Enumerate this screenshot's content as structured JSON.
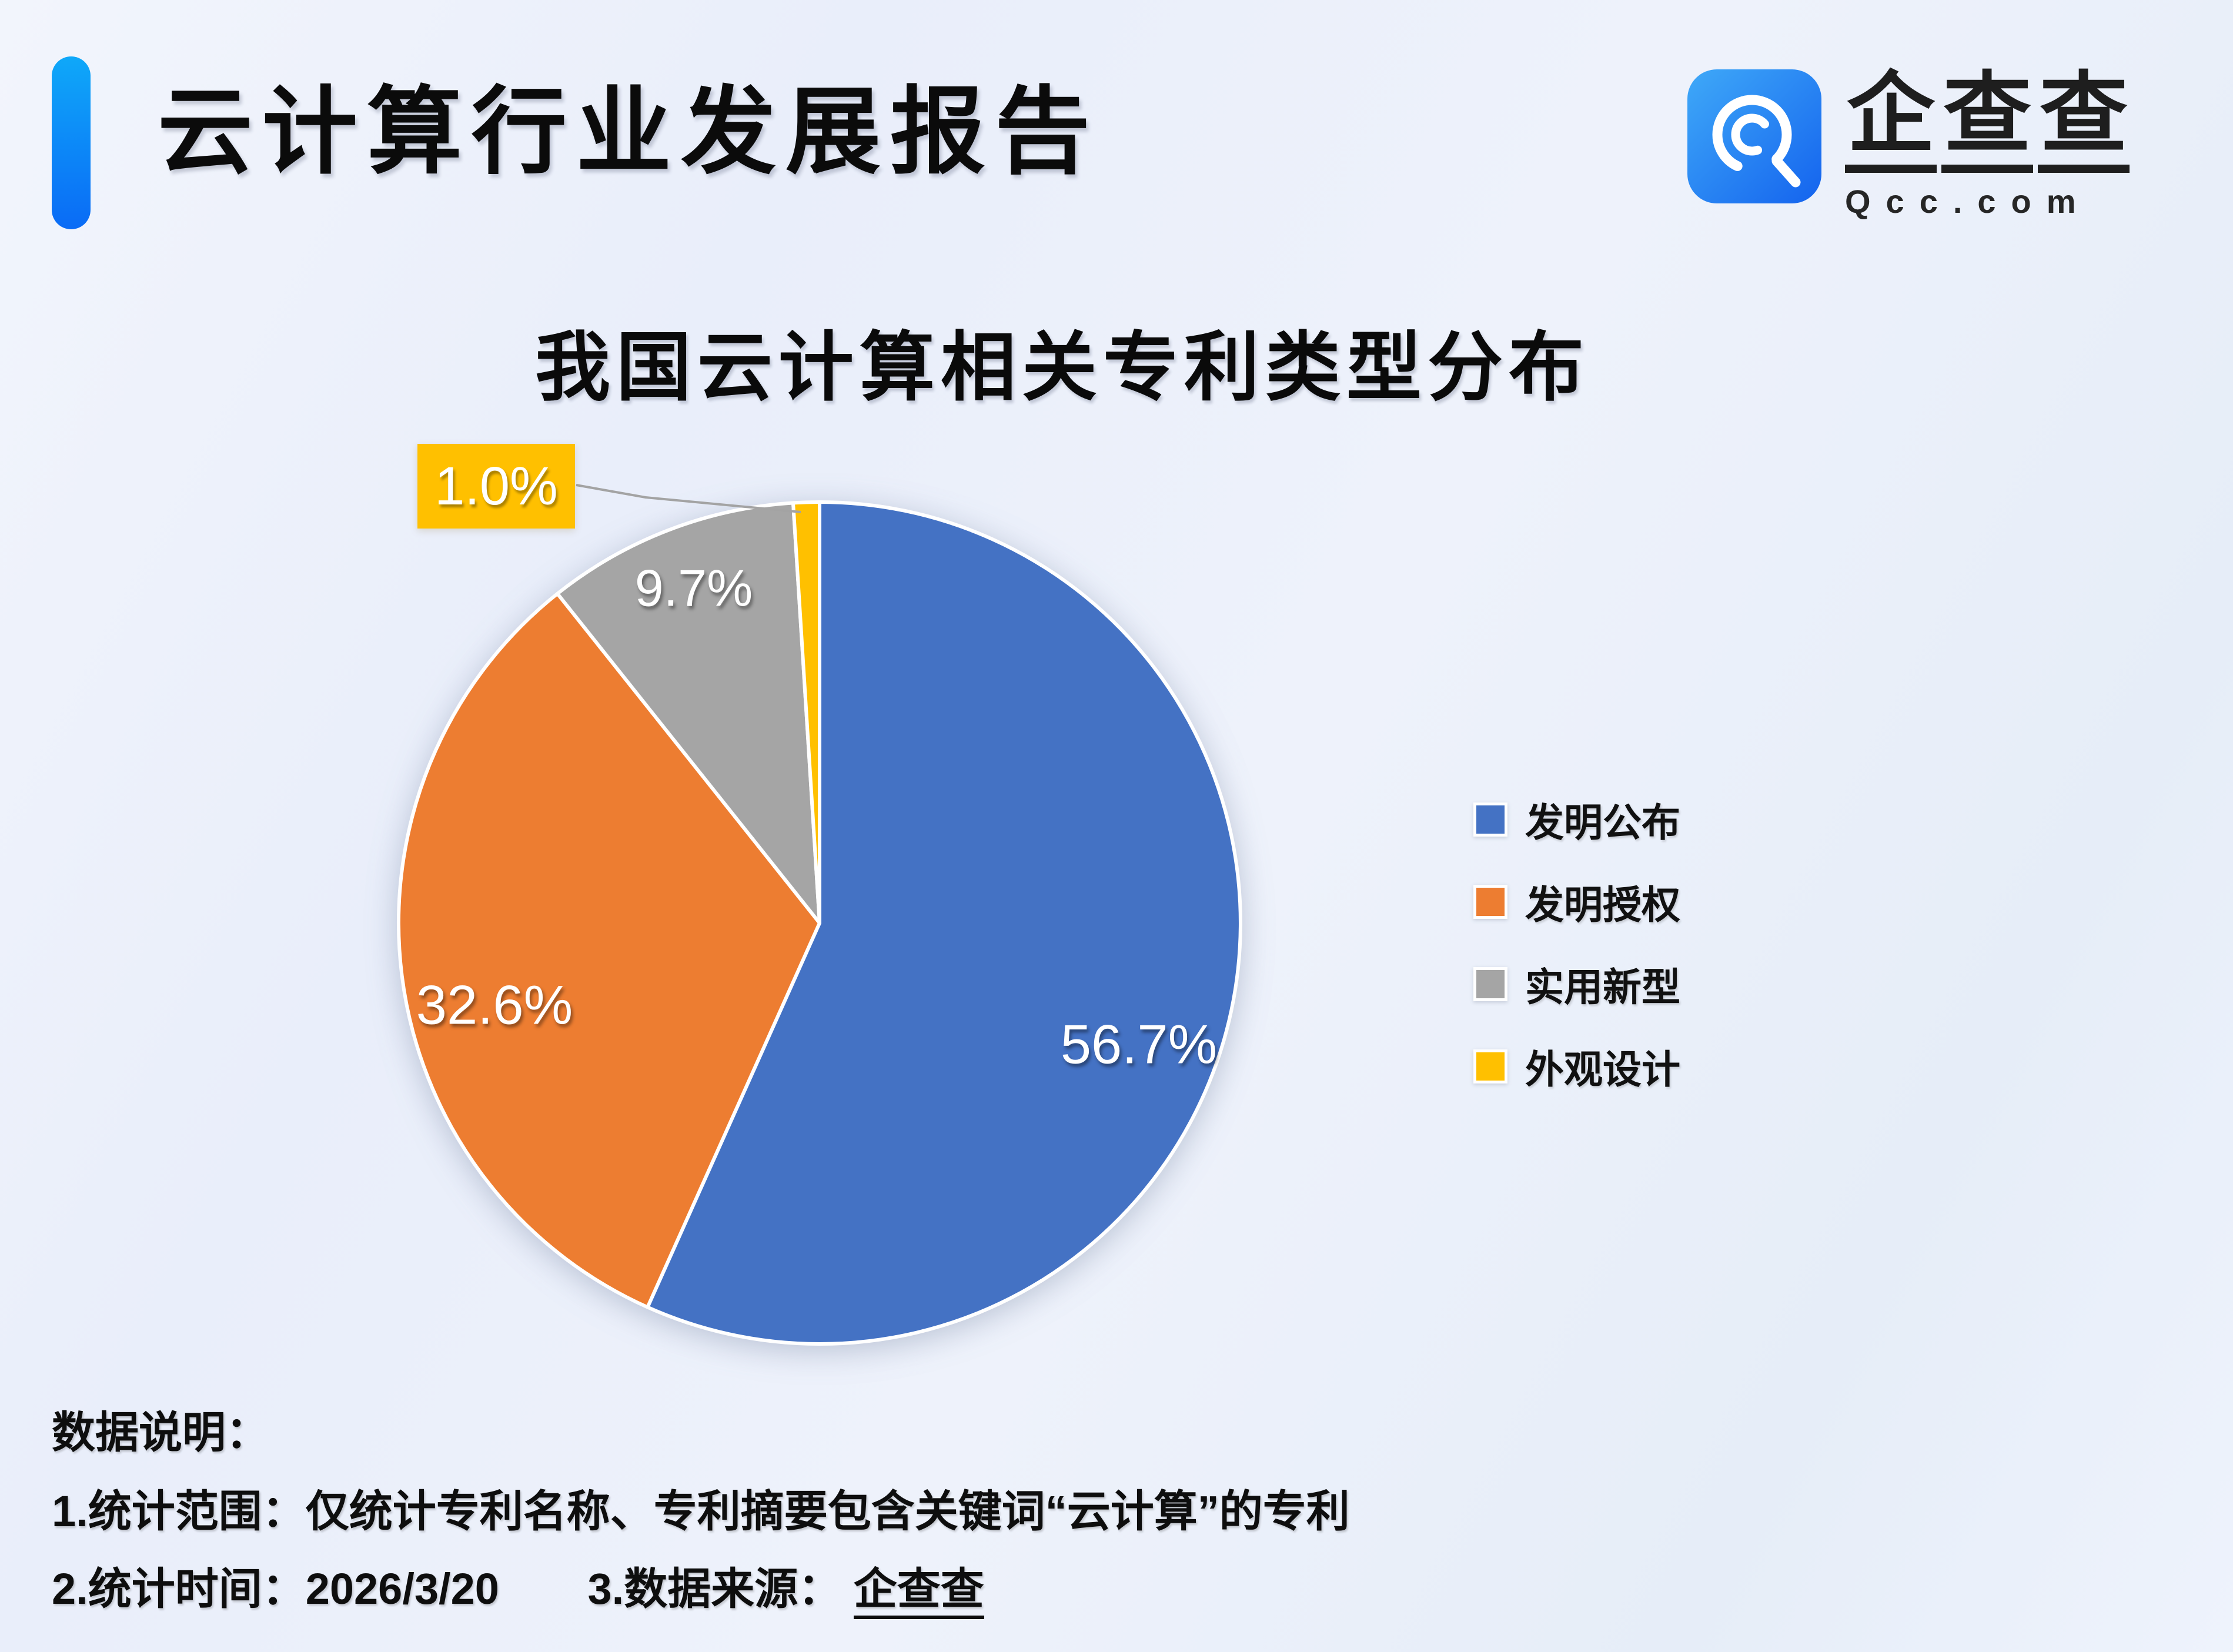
{
  "report": {
    "title": "云计算行业发展报告"
  },
  "brand": {
    "name": "企查查",
    "domain": "Qcc.com",
    "icon": "qcc-q-logo-icon"
  },
  "chart_data": {
    "type": "pie",
    "title": "我国云计算相关专利类型分布",
    "start_angle_deg": 0,
    "direction": "clockwise",
    "legend_position": "right",
    "labels_unit": "%",
    "slices": [
      {
        "label": "发明公布",
        "value": 56.7,
        "display": "56.7%",
        "color": "#4472C4",
        "label_style": "inside"
      },
      {
        "label": "发明授权",
        "value": 32.6,
        "display": "32.6%",
        "color": "#ED7D31",
        "label_style": "inside"
      },
      {
        "label": "实用新型",
        "value": 9.7,
        "display": "9.7%",
        "color": "#A5A5A5",
        "label_style": "inside"
      },
      {
        "label": "外观设计",
        "value": 1.0,
        "display": "1.0%",
        "color": "#FFC000",
        "label_style": "callout"
      }
    ]
  },
  "notes": {
    "heading": "数据说明：",
    "scope": "1.统计范围：仅统计专利名称、专利摘要包含关键词“云计算”的专利",
    "time": "2.统计时间：2026/3/20",
    "source_label": "3.数据来源：",
    "source_name": "企查查"
  },
  "colors": {
    "accent_bar_top": "#0fa8f9",
    "accent_bar_bottom": "#0a6bf6",
    "logo_blue_light": "#3fa9f8",
    "logo_blue_dark": "#1463ee",
    "callout_bg": "#FFC000",
    "leader_line": "#a3a3a3",
    "text": "#0d0d0d"
  }
}
